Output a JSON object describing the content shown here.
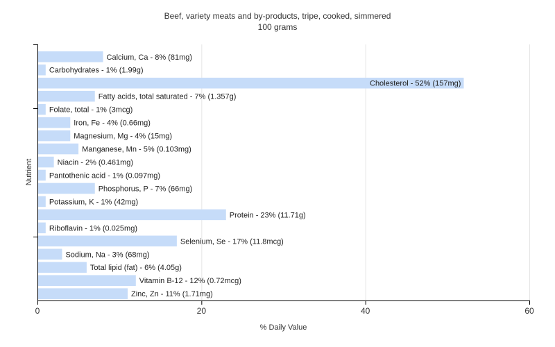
{
  "chart_data": {
    "type": "bar",
    "orientation": "horizontal",
    "title": "Beef, variety meats and by-products, tripe, cooked, simmered",
    "subtitle": "100 grams",
    "xlabel": "% Daily Value",
    "ylabel": "Nutrient",
    "xlim": [
      0,
      60
    ],
    "xticks": [
      0,
      20,
      40,
      60
    ],
    "grid": true,
    "legend": "none",
    "bar_color": "#c6dcf9",
    "categories": [
      "Calcium, Ca",
      "Carbohydrates",
      "Cholesterol",
      "Fatty acids, total saturated",
      "Folate, total",
      "Iron, Fe",
      "Magnesium, Mg",
      "Manganese, Mn",
      "Niacin",
      "Pantothenic acid",
      "Phosphorus, P",
      "Potassium, K",
      "Protein",
      "Riboflavin",
      "Selenium, Se",
      "Sodium, Na",
      "Total lipid (fat)",
      "Vitamin B-12",
      "Zinc, Zn"
    ],
    "values": [
      8,
      1,
      52,
      7,
      1,
      4,
      4,
      5,
      2,
      1,
      7,
      1,
      23,
      1,
      17,
      3,
      6,
      12,
      11
    ],
    "data_labels": [
      "Calcium, Ca - 8% (81mg)",
      "Carbohydrates - 1% (1.99g)",
      "Cholesterol - 52% (157mg)",
      "Fatty acids, total saturated - 7% (1.357g)",
      "Folate, total - 1% (3mcg)",
      "Iron, Fe - 4% (0.66mg)",
      "Magnesium, Mg - 4% (15mg)",
      "Manganese, Mn - 5% (0.103mg)",
      "Niacin - 2% (0.461mg)",
      "Pantothenic acid - 1% (0.097mg)",
      "Phosphorus, P - 7% (66mg)",
      "Potassium, K - 1% (42mg)",
      "Protein - 23% (11.71g)",
      "Riboflavin - 1% (0.025mg)",
      "Selenium, Se - 17% (11.8mcg)",
      "Sodium, Na - 3% (68mg)",
      "Total lipid (fat) - 6% (4.05g)",
      "Vitamin B-12 - 12% (0.72mcg)",
      "Zinc, Zn - 11% (1.71mg)"
    ]
  }
}
